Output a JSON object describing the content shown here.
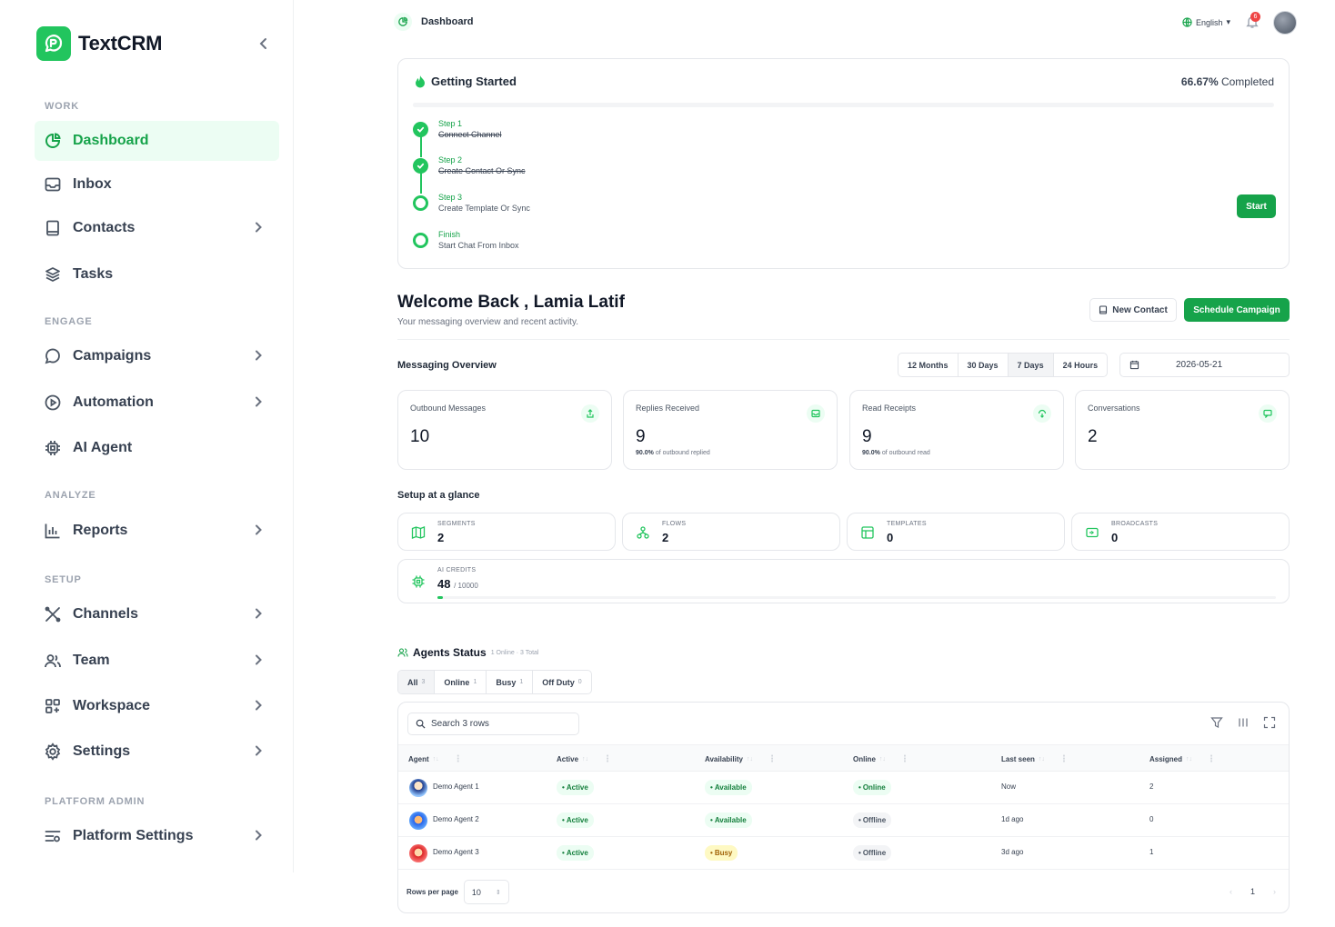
{
  "brand": {
    "name": "TextCRM"
  },
  "sidebar": {
    "sections": {
      "work": "WORK",
      "engage": "ENGAGE",
      "analyze": "ANALYZE",
      "setup": "SETUP",
      "platform": "PLATFORM ADMIN"
    },
    "items": [
      {
        "label": "Dashboard",
        "icon": "dashboard-icon",
        "active": true
      },
      {
        "label": "Inbox",
        "icon": "inbox-icon"
      },
      {
        "label": "Contacts",
        "icon": "contacts-icon"
      },
      {
        "label": "Tasks",
        "icon": "tasks-icon"
      },
      {
        "label": "Campaigns",
        "icon": "campaigns-icon"
      },
      {
        "label": "Automation",
        "icon": "automation-icon"
      },
      {
        "label": "AI Agent",
        "icon": "ai-agent-icon"
      },
      {
        "label": "Reports",
        "icon": "reports-icon"
      },
      {
        "label": "Channels",
        "icon": "channels-icon"
      },
      {
        "label": "Team",
        "icon": "team-icon"
      },
      {
        "label": "Workspace",
        "icon": "workspace-icon"
      },
      {
        "label": "Settings",
        "icon": "settings-icon"
      },
      {
        "label": "Platform Settings",
        "icon": "platform-settings-icon"
      }
    ]
  },
  "topbar": {
    "breadcrumb": "Dashboard",
    "language": "English",
    "notifications": "6"
  },
  "getting_started": {
    "title": "Getting Started",
    "percent": "66.67%",
    "completed_label": "Completed",
    "start_label": "Start",
    "steps": [
      {
        "name": "Step 1",
        "desc": "Connect Channel",
        "done": true
      },
      {
        "name": "Step 2",
        "desc": "Create Contact Or Sync",
        "done": true
      },
      {
        "name": "Step 3",
        "desc": "Create Template Or Sync",
        "done": false
      },
      {
        "name": "Finish",
        "desc": "Start Chat From Inbox",
        "done": false
      }
    ]
  },
  "welcome": {
    "title": "Welcome Back , Lamia Latif",
    "subtitle": "Your messaging overview and recent activity.",
    "new_contact": "New Contact",
    "schedule_campaign": "Schedule Campaign"
  },
  "overview": {
    "title": "Messaging Overview",
    "ranges": [
      "12 Months",
      "30 Days",
      "7 Days",
      "24 Hours"
    ],
    "active_range": "7 Days",
    "date": "2026-05-21",
    "stats": [
      {
        "label": "Outbound Messages",
        "value": "10",
        "sub_pct": "",
        "sub_text": ""
      },
      {
        "label": "Replies Received",
        "value": "9",
        "sub_pct": "90.0%",
        "sub_text": "of outbound replied"
      },
      {
        "label": "Read Receipts",
        "value": "9",
        "sub_pct": "90.0%",
        "sub_text": "of outbound read"
      },
      {
        "label": "Conversations",
        "value": "2",
        "sub_pct": "",
        "sub_text": ""
      }
    ]
  },
  "setup": {
    "title": "Setup at a glance",
    "items": [
      {
        "label": "SEGMENTS",
        "value": "2"
      },
      {
        "label": "FLOWS",
        "value": "2"
      },
      {
        "label": "TEMPLATES",
        "value": "0"
      },
      {
        "label": "BROADCASTS",
        "value": "0"
      }
    ],
    "credits": {
      "label": "AI CREDITS",
      "used": "48",
      "total": "/ 10000",
      "fraction": 0.0048
    }
  },
  "agents": {
    "title": "Agents Status",
    "summary": "1 Online · 3 Total",
    "tabs": [
      {
        "label": "All",
        "count": "3"
      },
      {
        "label": "Online",
        "count": "1"
      },
      {
        "label": "Busy",
        "count": "1"
      },
      {
        "label": "Off Duty",
        "count": "0"
      }
    ],
    "search_placeholder": "Search 3 rows",
    "columns": [
      "Agent",
      "Active",
      "Availability",
      "Online",
      "Last seen",
      "Assigned"
    ],
    "rows": [
      {
        "agent": "Demo Agent 1",
        "active": "Active",
        "availability": "Available",
        "online": "Online",
        "last_seen": "Now",
        "assigned": "2"
      },
      {
        "agent": "Demo Agent 2",
        "active": "Active",
        "availability": "Available",
        "online": "Offline",
        "last_seen": "1d ago",
        "assigned": "0"
      },
      {
        "agent": "Demo Agent 3",
        "active": "Active",
        "availability": "Busy",
        "online": "Offline",
        "last_seen": "3d ago",
        "assigned": "1"
      }
    ],
    "rows_per_page_label": "Rows per page",
    "rows_per_page": "10",
    "page": "1"
  },
  "colors": {
    "accent": "#16a34a",
    "accent_light": "#ecfdf3",
    "badge": "#ef4444"
  }
}
